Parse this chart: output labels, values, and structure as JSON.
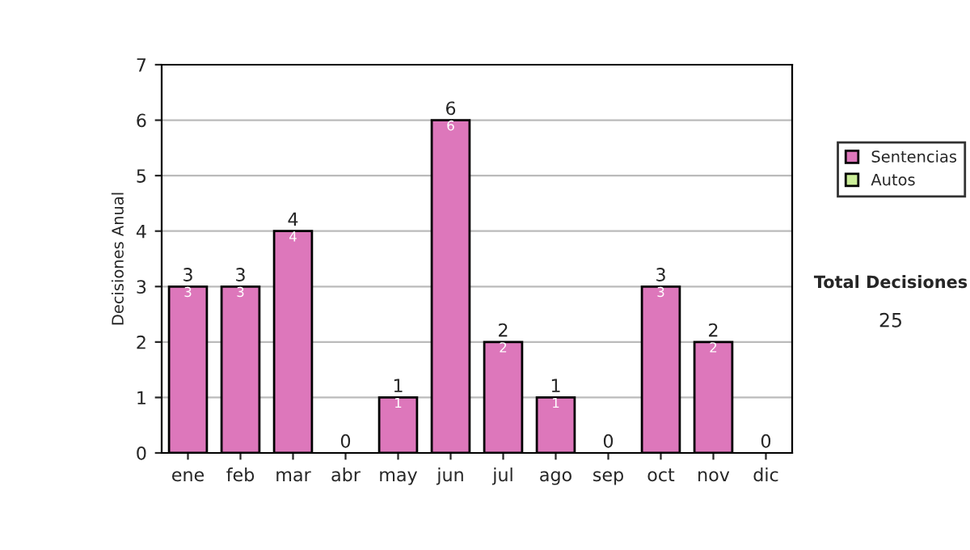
{
  "chart_data": {
    "type": "bar",
    "ylabel": "Decisiones Anual",
    "categories": [
      "ene",
      "feb",
      "mar",
      "abr",
      "may",
      "jun",
      "jul",
      "ago",
      "sep",
      "oct",
      "nov",
      "dic"
    ],
    "stacked": true,
    "series": [
      {
        "name": "Sentencias",
        "color": "#dd77bb",
        "values": [
          3,
          3,
          4,
          0,
          1,
          6,
          2,
          1,
          0,
          3,
          2,
          0
        ],
        "value_labels": [
          "3",
          "3",
          "4",
          null,
          "1",
          "6",
          "2",
          "1",
          null,
          "3",
          "2",
          null
        ]
      },
      {
        "name": "Autos",
        "color": "#ccee99",
        "values": [
          0,
          0,
          0,
          0,
          0,
          0,
          0,
          0,
          0,
          0,
          0,
          0
        ]
      }
    ],
    "totals": [
      "3",
      "3",
      "4",
      "0",
      "1",
      "6",
      "2",
      "1",
      "0",
      "3",
      "2",
      "0"
    ],
    "ylim": [
      0,
      7
    ],
    "yticks": [
      0,
      1,
      2,
      3,
      4,
      5,
      6,
      7
    ],
    "grid": "y",
    "legend": "right",
    "annotations": [
      "Total Decisiones",
      "25"
    ]
  }
}
